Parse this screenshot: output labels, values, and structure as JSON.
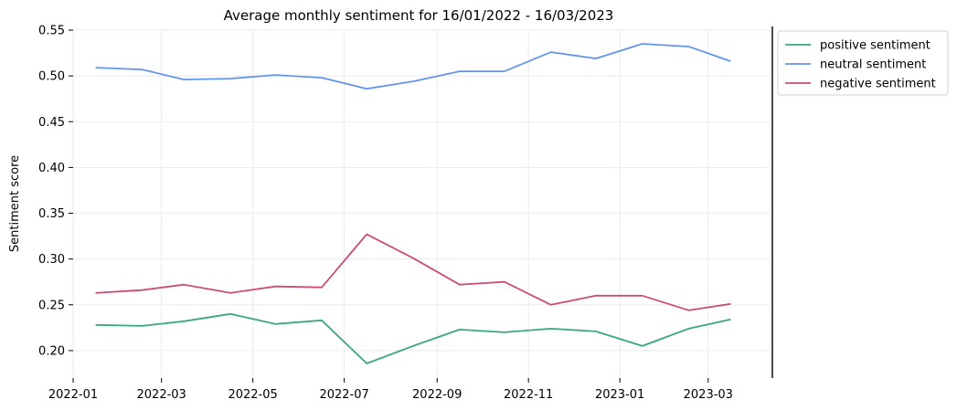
{
  "chart_data": {
    "type": "line",
    "title": "Average monthly sentiment for 16/01/2022 - 16/03/2023",
    "xlabel": "",
    "ylabel": "Sentiment score",
    "x": [
      "2022-01-16",
      "2022-02-16",
      "2022-03-16",
      "2022-04-16",
      "2022-05-16",
      "2022-06-16",
      "2022-07-16",
      "2022-08-16",
      "2022-09-16",
      "2022-10-16",
      "2022-11-16",
      "2022-12-16",
      "2023-01-16",
      "2023-02-16",
      "2023-03-16"
    ],
    "series": [
      {
        "name": "positive sentiment",
        "color": "#3aaa7a",
        "values": [
          0.228,
          0.227,
          0.232,
          0.24,
          0.229,
          0.233,
          0.186,
          0.205,
          0.223,
          0.22,
          0.224,
          0.221,
          0.205,
          0.224,
          0.234
        ]
      },
      {
        "name": "neutral sentiment",
        "color": "#6495ed",
        "values": [
          0.509,
          0.507,
          0.496,
          0.497,
          0.501,
          0.498,
          0.486,
          0.494,
          0.505,
          0.505,
          0.526,
          0.519,
          0.535,
          0.532,
          0.516
        ]
      },
      {
        "name": "negative sentiment",
        "color": "#cc4c78",
        "values": [
          0.263,
          0.266,
          0.272,
          0.263,
          0.27,
          0.269,
          0.327,
          0.301,
          0.272,
          0.275,
          0.25,
          0.26,
          0.26,
          0.244,
          0.251
        ]
      }
    ],
    "ylim": [
      0.17,
      0.55
    ],
    "yticks": [
      0.2,
      0.25,
      0.3,
      0.35,
      0.4,
      0.45,
      0.5,
      0.55
    ],
    "ytick_labels": [
      "0.20",
      "0.25",
      "0.30",
      "0.35",
      "0.40",
      "0.45",
      "0.50",
      "0.55"
    ],
    "xlim": [
      "2022-01-01",
      "2023-04-11"
    ],
    "xticks": [
      "2022-01-01",
      "2022-03-01",
      "2022-05-01",
      "2022-07-01",
      "2022-09-01",
      "2022-11-01",
      "2023-01-01",
      "2023-03-01"
    ],
    "xtick_labels": [
      "2022-01",
      "2022-03",
      "2022-05",
      "2022-07",
      "2022-09",
      "2022-11",
      "2023-01",
      "2023-03"
    ],
    "grid": true,
    "legend_position": "outside-top-right"
  }
}
